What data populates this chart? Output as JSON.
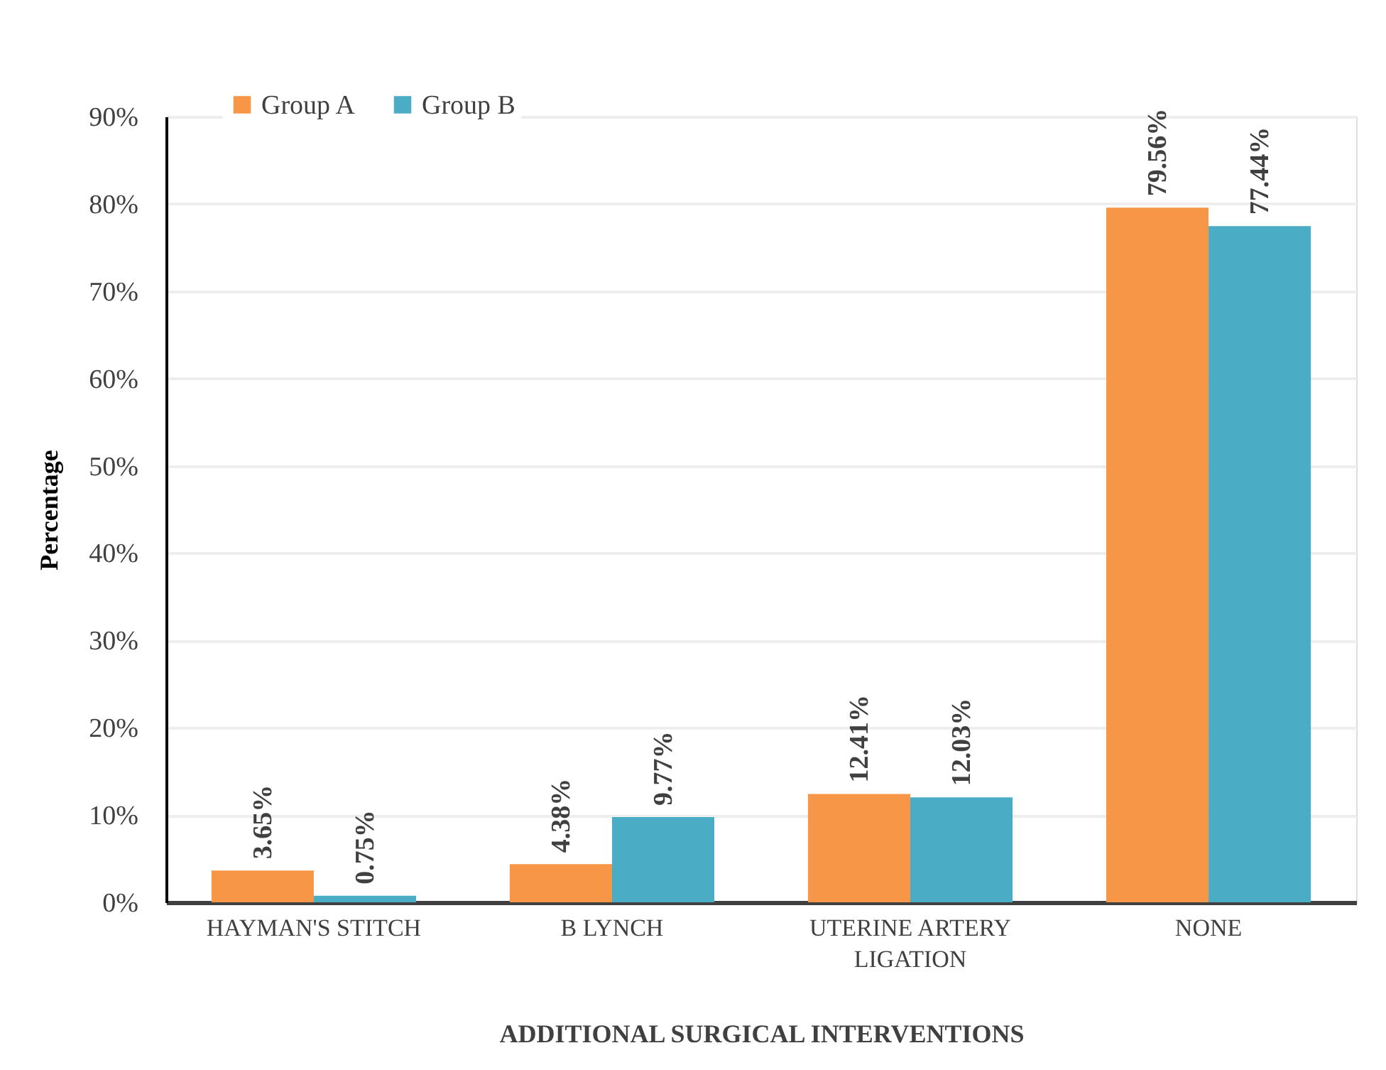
{
  "chart_data": {
    "type": "bar",
    "categories": [
      "HAYMAN'S STITCH",
      "B LYNCH",
      "UTERINE ARTERY LIGATION",
      "NONE"
    ],
    "series": [
      {
        "name": "Group A",
        "color": "#f79646",
        "values": [
          3.65,
          4.38,
          12.41,
          79.56
        ],
        "value_labels": [
          "3.65%",
          "4.38%",
          "12.41%",
          "79.56%"
        ]
      },
      {
        "name": "Group B",
        "color": "#4bacc6",
        "values": [
          0.75,
          9.77,
          12.03,
          77.44
        ],
        "value_labels": [
          "0.75%",
          "9.77%",
          "12.03%",
          "77.44%"
        ]
      }
    ],
    "xlabel": "ADDITIONAL SURGICAL INTERVENTIONS",
    "ylabel": "Percentage",
    "ylim": [
      0,
      90
    ],
    "yticks": [
      {
        "value": 0,
        "label": "0%"
      },
      {
        "value": 10,
        "label": "10%"
      },
      {
        "value": 20,
        "label": "20%"
      },
      {
        "value": 30,
        "label": "30%"
      },
      {
        "value": 40,
        "label": "40%"
      },
      {
        "value": 50,
        "label": "50%"
      },
      {
        "value": 60,
        "label": "60%"
      },
      {
        "value": 70,
        "label": "70%"
      },
      {
        "value": 80,
        "label": "80%"
      },
      {
        "value": 90,
        "label": "90%"
      }
    ],
    "grid": "y",
    "legend": "top left"
  }
}
